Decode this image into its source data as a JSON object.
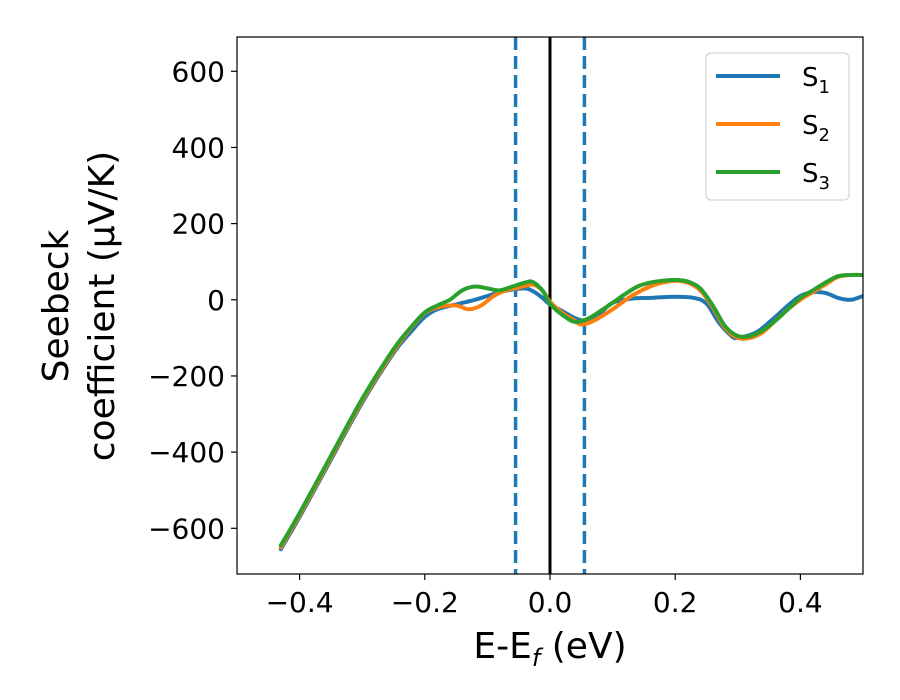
{
  "chart_data": {
    "type": "line",
    "xlabel": {
      "main": "E-E",
      "sub": "f",
      "suffix": " (eV)"
    },
    "ylabel": {
      "line1": "Seebeck",
      "line2": "coefficient  (μV/K)"
    },
    "xlim": [
      -0.5,
      0.5
    ],
    "ylim": [
      -720,
      690
    ],
    "x_ticks": [
      -0.4,
      -0.2,
      0.0,
      0.2,
      0.4
    ],
    "x_tick_labels": [
      "−0.4",
      "−0.2",
      "0.0",
      "0.2",
      "0.4"
    ],
    "y_ticks": [
      -600,
      -400,
      -200,
      0,
      200,
      400,
      600
    ],
    "y_tick_labels": [
      "−600",
      "−400",
      "−200",
      "0",
      "200",
      "400",
      "600"
    ],
    "legend_position": "top-right",
    "vertical_lines": [
      {
        "x": -0.055,
        "style": "dashed",
        "color": "#1f77b4"
      },
      {
        "x": 0.0,
        "style": "solid",
        "color": "#000000"
      },
      {
        "x": 0.055,
        "style": "dashed",
        "color": "#1f77b4"
      }
    ],
    "series": [
      {
        "name": "S",
        "sub": "1",
        "color": "#1f77b4",
        "points": [
          [
            -0.43,
            -655
          ],
          [
            -0.4,
            -570
          ],
          [
            -0.35,
            -420
          ],
          [
            -0.3,
            -270
          ],
          [
            -0.25,
            -140
          ],
          [
            -0.22,
            -80
          ],
          [
            -0.2,
            -45
          ],
          [
            -0.18,
            -25
          ],
          [
            -0.15,
            -12
          ],
          [
            -0.12,
            0
          ],
          [
            -0.1,
            10
          ],
          [
            -0.08,
            20
          ],
          [
            -0.06,
            27
          ],
          [
            -0.04,
            30
          ],
          [
            -0.03,
            25
          ],
          [
            -0.02,
            15
          ],
          [
            -0.01,
            2
          ],
          [
            0.0,
            -12
          ],
          [
            0.02,
            -30
          ],
          [
            0.04,
            -48
          ],
          [
            0.06,
            -55
          ],
          [
            0.08,
            -35
          ],
          [
            0.1,
            -8
          ],
          [
            0.13,
            3
          ],
          [
            0.16,
            5
          ],
          [
            0.2,
            8
          ],
          [
            0.23,
            5
          ],
          [
            0.25,
            -10
          ],
          [
            0.27,
            -60
          ],
          [
            0.29,
            -95
          ],
          [
            0.3,
            -100
          ],
          [
            0.33,
            -85
          ],
          [
            0.36,
            -45
          ],
          [
            0.38,
            -15
          ],
          [
            0.4,
            10
          ],
          [
            0.42,
            20
          ],
          [
            0.44,
            18
          ],
          [
            0.46,
            5
          ],
          [
            0.48,
            0
          ],
          [
            0.5,
            10
          ]
        ]
      },
      {
        "name": "S",
        "sub": "2",
        "color": "#ff7f0e",
        "points": [
          [
            -0.43,
            -650
          ],
          [
            -0.4,
            -565
          ],
          [
            -0.35,
            -415
          ],
          [
            -0.3,
            -265
          ],
          [
            -0.25,
            -135
          ],
          [
            -0.22,
            -70
          ],
          [
            -0.2,
            -35
          ],
          [
            -0.18,
            -20
          ],
          [
            -0.15,
            -15
          ],
          [
            -0.13,
            -25
          ],
          [
            -0.11,
            -15
          ],
          [
            -0.09,
            10
          ],
          [
            -0.07,
            25
          ],
          [
            -0.05,
            32
          ],
          [
            -0.03,
            40
          ],
          [
            -0.02,
            35
          ],
          [
            -0.01,
            20
          ],
          [
            0.0,
            -5
          ],
          [
            0.02,
            -35
          ],
          [
            0.04,
            -55
          ],
          [
            0.05,
            -65
          ],
          [
            0.07,
            -55
          ],
          [
            0.1,
            -25
          ],
          [
            0.13,
            10
          ],
          [
            0.16,
            35
          ],
          [
            0.18,
            45
          ],
          [
            0.2,
            50
          ],
          [
            0.22,
            45
          ],
          [
            0.24,
            25
          ],
          [
            0.26,
            -20
          ],
          [
            0.28,
            -75
          ],
          [
            0.3,
            -100
          ],
          [
            0.32,
            -100
          ],
          [
            0.34,
            -85
          ],
          [
            0.36,
            -55
          ],
          [
            0.38,
            -25
          ],
          [
            0.4,
            0
          ],
          [
            0.42,
            20
          ],
          [
            0.44,
            40
          ],
          [
            0.46,
            60
          ],
          [
            0.48,
            65
          ],
          [
            0.5,
            65
          ]
        ]
      },
      {
        "name": "S",
        "sub": "3",
        "color": "#2ca02c",
        "points": [
          [
            -0.43,
            -645
          ],
          [
            -0.4,
            -560
          ],
          [
            -0.35,
            -410
          ],
          [
            -0.3,
            -260
          ],
          [
            -0.25,
            -130
          ],
          [
            -0.22,
            -68
          ],
          [
            -0.2,
            -33
          ],
          [
            -0.18,
            -15
          ],
          [
            -0.16,
            0
          ],
          [
            -0.14,
            25
          ],
          [
            -0.12,
            35
          ],
          [
            -0.1,
            30
          ],
          [
            -0.08,
            25
          ],
          [
            -0.06,
            35
          ],
          [
            -0.04,
            45
          ],
          [
            -0.03,
            48
          ],
          [
            -0.02,
            38
          ],
          [
            -0.01,
            20
          ],
          [
            0.0,
            -10
          ],
          [
            0.02,
            -40
          ],
          [
            0.04,
            -58
          ],
          [
            0.06,
            -50
          ],
          [
            0.08,
            -30
          ],
          [
            0.1,
            -8
          ],
          [
            0.12,
            15
          ],
          [
            0.14,
            35
          ],
          [
            0.16,
            45
          ],
          [
            0.18,
            50
          ],
          [
            0.2,
            52
          ],
          [
            0.22,
            48
          ],
          [
            0.24,
            30
          ],
          [
            0.26,
            -15
          ],
          [
            0.28,
            -70
          ],
          [
            0.3,
            -95
          ],
          [
            0.32,
            -95
          ],
          [
            0.34,
            -80
          ],
          [
            0.36,
            -55
          ],
          [
            0.38,
            -25
          ],
          [
            0.4,
            5
          ],
          [
            0.42,
            25
          ],
          [
            0.44,
            45
          ],
          [
            0.46,
            62
          ],
          [
            0.48,
            65
          ],
          [
            0.5,
            65
          ]
        ]
      }
    ]
  }
}
